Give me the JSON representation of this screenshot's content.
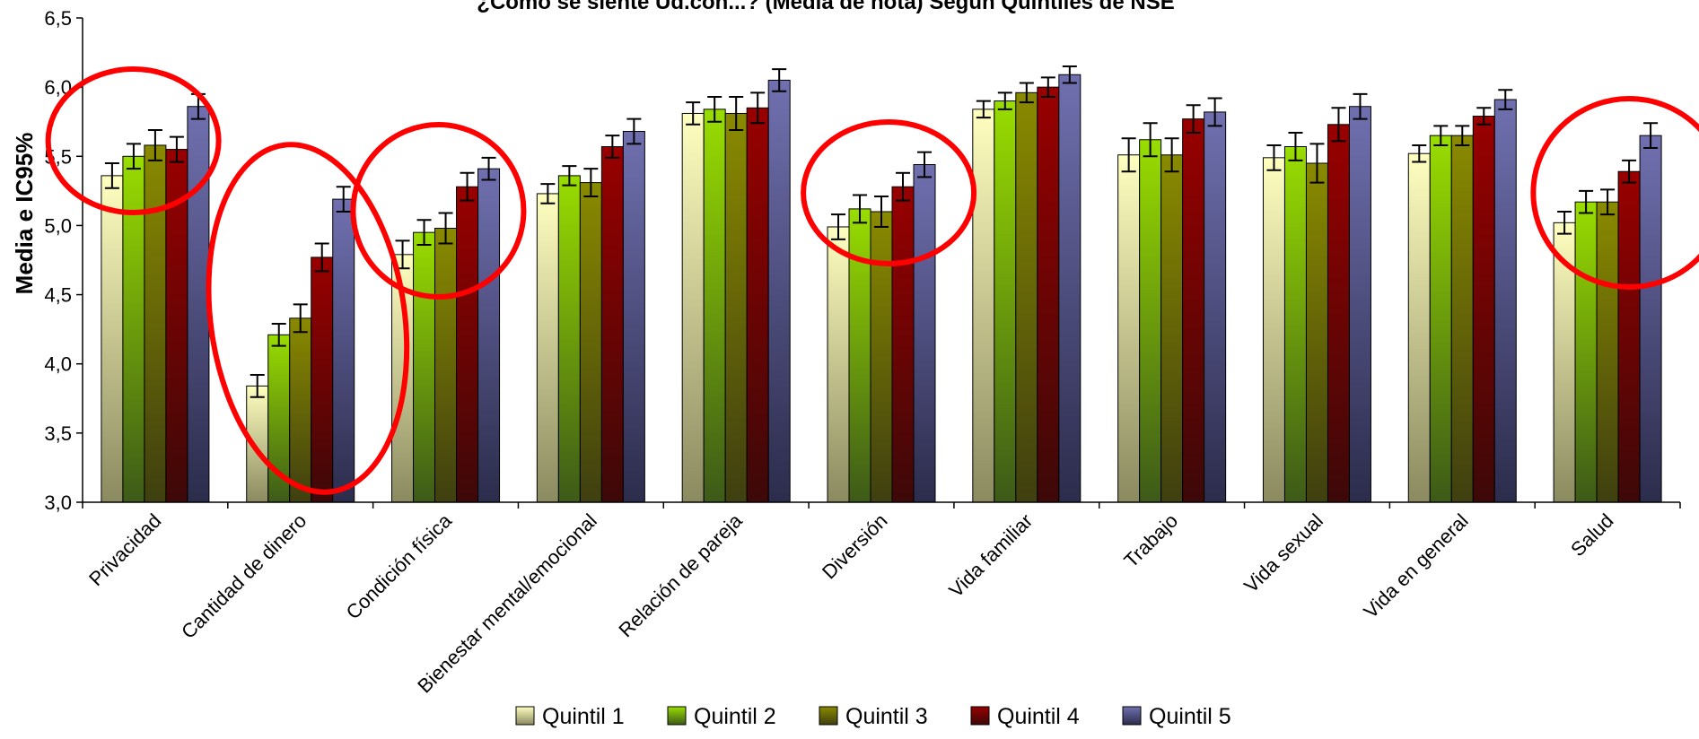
{
  "chart_data": {
    "type": "bar",
    "title": "¿Cómo se siente Ud.con...? (Media de nota) Según Quintiles de NSE",
    "xlabel": "",
    "ylabel": "Media e IC95%",
    "ylim": [
      3.0,
      6.5
    ],
    "yticks": [
      "3,0",
      "3,5",
      "4,0",
      "4,5",
      "5,0",
      "5,5",
      "6,0",
      "6,5"
    ],
    "categories": [
      "Privacidad",
      "Cantidad de dinero",
      "Condición física",
      "Bienestar mental/emocional",
      "Relación de pareja",
      "Diversión",
      "Vida familiar",
      "Trabajo",
      "Vida sexual",
      "Vida en general",
      "Salud"
    ],
    "series": [
      {
        "name": "Quintil 1",
        "values": [
          5.36,
          3.84,
          4.79,
          5.23,
          5.81,
          4.99,
          5.84,
          5.51,
          5.49,
          5.52,
          5.02
        ],
        "err": [
          0.09,
          0.08,
          0.1,
          0.07,
          0.08,
          0.09,
          0.06,
          0.12,
          0.09,
          0.06,
          0.08
        ]
      },
      {
        "name": "Quintil 2",
        "values": [
          5.5,
          4.21,
          4.95,
          5.36,
          5.84,
          5.12,
          5.9,
          5.62,
          5.57,
          5.65,
          5.17
        ],
        "err": [
          0.09,
          0.08,
          0.09,
          0.07,
          0.09,
          0.1,
          0.06,
          0.12,
          0.1,
          0.07,
          0.08
        ]
      },
      {
        "name": "Quintil 3",
        "values": [
          5.58,
          4.33,
          4.98,
          5.31,
          5.81,
          5.1,
          5.96,
          5.51,
          5.45,
          5.65,
          5.17
        ],
        "err": [
          0.11,
          0.1,
          0.11,
          0.1,
          0.12,
          0.11,
          0.07,
          0.12,
          0.14,
          0.07,
          0.09
        ]
      },
      {
        "name": "Quintil 4",
        "values": [
          5.55,
          4.77,
          5.28,
          5.57,
          5.85,
          5.28,
          6.0,
          5.77,
          5.73,
          5.79,
          5.39
        ],
        "err": [
          0.09,
          0.1,
          0.1,
          0.08,
          0.11,
          0.1,
          0.07,
          0.1,
          0.12,
          0.06,
          0.08
        ]
      },
      {
        "name": "Quintil 5",
        "values": [
          5.86,
          5.19,
          5.41,
          5.68,
          6.05,
          5.44,
          6.09,
          5.82,
          5.86,
          5.91,
          5.65
        ],
        "err": [
          0.09,
          0.09,
          0.08,
          0.09,
          0.08,
          0.09,
          0.06,
          0.1,
          0.09,
          0.07,
          0.09
        ]
      }
    ],
    "grid": false,
    "legend_position": "bottom",
    "highlight_circles_color": "#ff0000",
    "highlighted_categories": [
      "Privacidad",
      "Cantidad de dinero",
      "Condición física",
      "Diversión",
      "Salud"
    ]
  },
  "colors": {
    "quintil_1": [
      "#ffffc0",
      "#8b8a60"
    ],
    "quintil_2": [
      "#99dd00",
      "#3d5a18"
    ],
    "quintil_3": [
      "#8a8a00",
      "#3f3f10"
    ],
    "quintil_4": [
      "#990000",
      "#3d0808"
    ],
    "quintil_5": [
      "#7070b0",
      "#2c2c4c"
    ],
    "circle": "#ff0000"
  }
}
